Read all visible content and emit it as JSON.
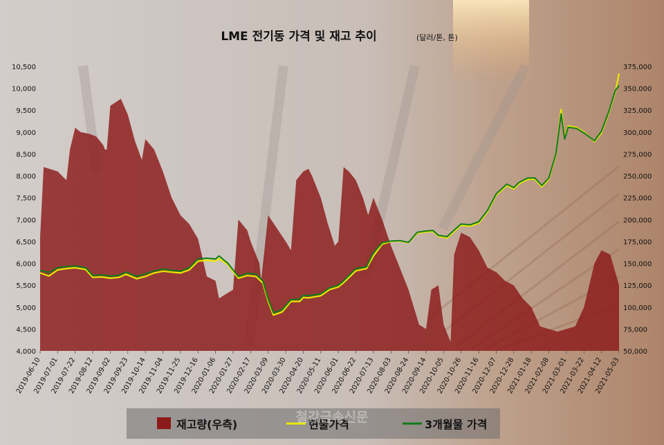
{
  "watermark": "철강금속신문",
  "chart_data": {
    "type": "line",
    "title": "LME 전기동 가격 및 재고 추이",
    "subtitle": "(달러/톤, 톤)",
    "x_categories": [
      "2019-06-10",
      "2019-07-01",
      "2019-07-22",
      "2019-08-12",
      "2019-09-02",
      "2019-09-23",
      "2019-10-14",
      "2019-11-04",
      "2019-11-25",
      "2019-12-16",
      "2020-01-06",
      "2020-01-27",
      "2020-02-17",
      "2020-03-09",
      "2020-03-30",
      "2020-04-20",
      "2020-05-11",
      "2020-06-01",
      "2020-06-22",
      "2020-07-13",
      "2020-08-03",
      "2020-08-24",
      "2020-09-14",
      "2020-10-05",
      "2020-10-26",
      "2020-11-16",
      "2020-12-07",
      "2020-12-28",
      "2021-01-18",
      "2021-02-08",
      "2021-03-01",
      "2021-03-22",
      "2021-04-12",
      "2021-05-03"
    ],
    "y_left": {
      "min": 4000,
      "max": 10500,
      "step": 500,
      "ticks": [
        "4,000",
        "4,500",
        "5,000",
        "5,500",
        "6,000",
        "6,500",
        "7,000",
        "7,500",
        "8,000",
        "8,500",
        "9,000",
        "9,500",
        "10,000",
        "10,500"
      ]
    },
    "y_right": {
      "min": 50000,
      "max": 375000,
      "step": 25000,
      "ticks": [
        "50,000",
        "75,000",
        "100,000",
        "125,000",
        "150,000",
        "175,000",
        "200,000",
        "225,000",
        "250,000",
        "275,000",
        "300,000",
        "325,000",
        "350,000",
        "375,000"
      ]
    },
    "legend_position": "bottom",
    "series": [
      {
        "name": "재고량(우측)",
        "type": "area",
        "axis": "right",
        "color": "#8B1A1A",
        "points": [
          [
            0,
            180000
          ],
          [
            0.2,
            260000
          ],
          [
            1,
            255000
          ],
          [
            1.5,
            245000
          ],
          [
            1.7,
            280000
          ],
          [
            2,
            305000
          ],
          [
            2.3,
            300000
          ],
          [
            2.8,
            298000
          ],
          [
            3.2,
            295000
          ],
          [
            3.6,
            285000
          ],
          [
            3.7,
            280000
          ],
          [
            3.8,
            280000
          ],
          [
            4,
            330000
          ],
          [
            4.6,
            338000
          ],
          [
            5,
            320000
          ],
          [
            5.4,
            290000
          ],
          [
            5.8,
            268000
          ],
          [
            6,
            292000
          ],
          [
            6.5,
            280000
          ],
          [
            7,
            255000
          ],
          [
            7.5,
            225000
          ],
          [
            8,
            205000
          ],
          [
            8.5,
            195000
          ],
          [
            9,
            178000
          ],
          [
            9.5,
            135000
          ],
          [
            10,
            130000
          ],
          [
            10.2,
            110000
          ],
          [
            11,
            120000
          ],
          [
            11.3,
            200000
          ],
          [
            11.8,
            188000
          ],
          [
            12,
            175000
          ],
          [
            12.5,
            150000
          ],
          [
            12.6,
            130000
          ],
          [
            13,
            205000
          ],
          [
            13.5,
            190000
          ],
          [
            14,
            175000
          ],
          [
            14.3,
            165000
          ],
          [
            14.6,
            245000
          ],
          [
            15,
            255000
          ],
          [
            15.3,
            258000
          ],
          [
            15.5,
            250000
          ],
          [
            16,
            225000
          ],
          [
            16.4,
            195000
          ],
          [
            16.8,
            170000
          ],
          [
            17,
            175000
          ],
          [
            17.3,
            260000
          ],
          [
            17.6,
            255000
          ],
          [
            18,
            245000
          ],
          [
            18.4,
            225000
          ],
          [
            18.7,
            205000
          ],
          [
            19,
            225000
          ],
          [
            19.5,
            200000
          ],
          [
            20,
            170000
          ],
          [
            20.5,
            145000
          ],
          [
            21,
            120000
          ],
          [
            21.6,
            80000
          ],
          [
            22,
            75000
          ],
          [
            22.3,
            120000
          ],
          [
            22.7,
            125000
          ],
          [
            23,
            80000
          ],
          [
            23.4,
            60000
          ],
          [
            23.6,
            160000
          ],
          [
            24,
            185000
          ],
          [
            24.5,
            180000
          ],
          [
            25,
            165000
          ],
          [
            25.5,
            145000
          ],
          [
            26,
            140000
          ],
          [
            26.5,
            130000
          ],
          [
            27,
            125000
          ],
          [
            27.5,
            110000
          ],
          [
            28,
            100000
          ],
          [
            28.5,
            78000
          ],
          [
            29,
            75000
          ],
          [
            29.5,
            72000
          ],
          [
            30,
            75000
          ],
          [
            30.5,
            78000
          ],
          [
            31,
            100000
          ],
          [
            31.6,
            150000
          ],
          [
            32,
            165000
          ],
          [
            32.5,
            160000
          ],
          [
            33,
            125000
          ],
          [
            33,
            50000
          ],
          [
            0,
            50000
          ]
        ]
      },
      {
        "name": "현물가격",
        "type": "line",
        "axis": "left",
        "color": "#E8E800",
        "points": [
          [
            0,
            5780
          ],
          [
            0.5,
            5710
          ],
          [
            1,
            5850
          ],
          [
            1.5,
            5880
          ],
          [
            2,
            5900
          ],
          [
            2.6,
            5860
          ],
          [
            3,
            5680
          ],
          [
            3.5,
            5690
          ],
          [
            4,
            5660
          ],
          [
            4.5,
            5680
          ],
          [
            4.9,
            5750
          ],
          [
            5.5,
            5650
          ],
          [
            6,
            5700
          ],
          [
            6.5,
            5780
          ],
          [
            7,
            5820
          ],
          [
            7.5,
            5800
          ],
          [
            8,
            5780
          ],
          [
            8.5,
            5850
          ],
          [
            9,
            6050
          ],
          [
            9.5,
            6070
          ],
          [
            10,
            6050
          ],
          [
            10.2,
            6110
          ],
          [
            10.7,
            5970
          ],
          [
            11.3,
            5660
          ],
          [
            11.8,
            5720
          ],
          [
            12.3,
            5700
          ],
          [
            12.7,
            5550
          ],
          [
            13,
            5130
          ],
          [
            13.3,
            4820
          ],
          [
            13.8,
            4890
          ],
          [
            14.3,
            5130
          ],
          [
            14.8,
            5130
          ],
          [
            15,
            5220
          ],
          [
            15.3,
            5210
          ],
          [
            16,
            5260
          ],
          [
            16.5,
            5400
          ],
          [
            17,
            5460
          ],
          [
            17.3,
            5560
          ],
          [
            18,
            5830
          ],
          [
            18.6,
            5880
          ],
          [
            19,
            6170
          ],
          [
            19.5,
            6440
          ],
          [
            20,
            6500
          ],
          [
            20.5,
            6510
          ],
          [
            21,
            6470
          ],
          [
            21.5,
            6690
          ],
          [
            22,
            6720
          ],
          [
            22.4,
            6730
          ],
          [
            22.7,
            6620
          ],
          [
            23.2,
            6580
          ],
          [
            23.6,
            6730
          ],
          [
            24,
            6870
          ],
          [
            24.5,
            6850
          ],
          [
            25,
            6920
          ],
          [
            25.5,
            7180
          ],
          [
            26,
            7560
          ],
          [
            26.6,
            7780
          ],
          [
            27,
            7700
          ],
          [
            27.3,
            7820
          ],
          [
            27.8,
            7920
          ],
          [
            28.2,
            7920
          ],
          [
            28.6,
            7750
          ],
          [
            29,
            7920
          ],
          [
            29.4,
            8470
          ],
          [
            29.7,
            9520
          ],
          [
            29.9,
            8870
          ],
          [
            30.1,
            9140
          ],
          [
            30.6,
            9100
          ],
          [
            31,
            9000
          ],
          [
            31.6,
            8780
          ],
          [
            32,
            8980
          ],
          [
            32.4,
            9420
          ],
          [
            32.8,
            9930
          ],
          [
            33,
            10340
          ]
        ]
      },
      {
        "name": "3개월물 가격",
        "type": "line",
        "axis": "left",
        "color": "#0F7A1A",
        "points": [
          [
            0,
            5840
          ],
          [
            0.5,
            5790
          ],
          [
            1,
            5900
          ],
          [
            1.5,
            5930
          ],
          [
            2,
            5940
          ],
          [
            2.6,
            5900
          ],
          [
            3,
            5720
          ],
          [
            3.5,
            5740
          ],
          [
            4,
            5710
          ],
          [
            4.5,
            5730
          ],
          [
            4.9,
            5800
          ],
          [
            5.5,
            5700
          ],
          [
            6,
            5760
          ],
          [
            6.5,
            5830
          ],
          [
            7,
            5870
          ],
          [
            7.5,
            5840
          ],
          [
            8,
            5820
          ],
          [
            8.5,
            5900
          ],
          [
            9,
            6100
          ],
          [
            9.5,
            6120
          ],
          [
            10,
            6100
          ],
          [
            10.2,
            6170
          ],
          [
            10.7,
            6000
          ],
          [
            11.3,
            5700
          ],
          [
            11.8,
            5770
          ],
          [
            12.3,
            5760
          ],
          [
            12.7,
            5600
          ],
          [
            13,
            5180
          ],
          [
            13.3,
            4870
          ],
          [
            13.8,
            4940
          ],
          [
            14.3,
            5170
          ],
          [
            14.8,
            5180
          ],
          [
            15,
            5270
          ],
          [
            15.3,
            5260
          ],
          [
            16,
            5300
          ],
          [
            16.5,
            5440
          ],
          [
            17,
            5500
          ],
          [
            17.3,
            5600
          ],
          [
            18,
            5880
          ],
          [
            18.6,
            5920
          ],
          [
            19,
            6240
          ],
          [
            19.5,
            6470
          ],
          [
            20,
            6510
          ],
          [
            20.5,
            6520
          ],
          [
            21,
            6480
          ],
          [
            21.5,
            6710
          ],
          [
            22,
            6740
          ],
          [
            22.4,
            6750
          ],
          [
            22.7,
            6640
          ],
          [
            23.2,
            6610
          ],
          [
            23.6,
            6760
          ],
          [
            24,
            6900
          ],
          [
            24.5,
            6880
          ],
          [
            25,
            6950
          ],
          [
            25.5,
            7210
          ],
          [
            26,
            7590
          ],
          [
            26.6,
            7810
          ],
          [
            27,
            7730
          ],
          [
            27.3,
            7850
          ],
          [
            27.8,
            7950
          ],
          [
            28.2,
            7950
          ],
          [
            28.6,
            7780
          ],
          [
            29,
            7950
          ],
          [
            29.4,
            8500
          ],
          [
            29.7,
            9420
          ],
          [
            29.9,
            8840
          ],
          [
            30.1,
            9110
          ],
          [
            30.6,
            9080
          ],
          [
            31,
            8980
          ],
          [
            31.6,
            8800
          ],
          [
            32,
            9020
          ],
          [
            32.4,
            9450
          ],
          [
            32.8,
            9960
          ],
          [
            33,
            10060
          ]
        ]
      }
    ]
  }
}
